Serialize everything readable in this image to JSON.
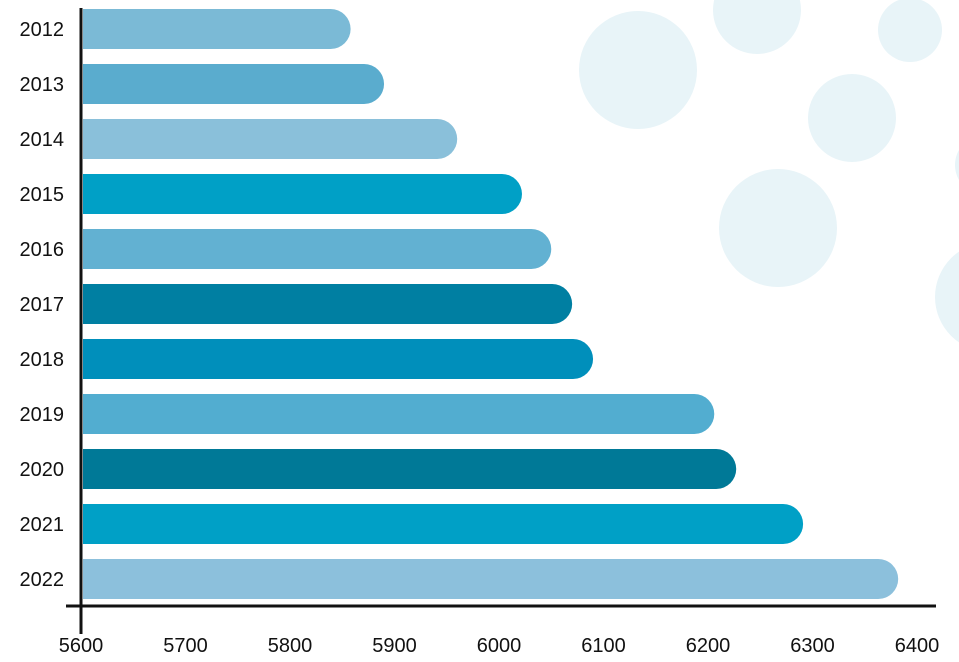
{
  "chart_data": {
    "type": "bar",
    "orientation": "horizontal",
    "title": "",
    "xlabel": "",
    "ylabel": "",
    "xlim": [
      5600,
      6400
    ],
    "xticks": [
      5600,
      5700,
      5800,
      5900,
      6000,
      6100,
      6200,
      6300,
      6400
    ],
    "categories": [
      "2012",
      "2013",
      "2014",
      "2015",
      "2016",
      "2017",
      "2018",
      "2019",
      "2020",
      "2021",
      "2022"
    ],
    "values": [
      5858,
      5890,
      5960,
      6022,
      6050,
      6070,
      6090,
      6206,
      6227,
      6291,
      6382
    ],
    "colors": [
      "#7bbad6",
      "#5aacce",
      "#8ac0da",
      "#00a0c6",
      "#62b1d2",
      "#007fa2",
      "#008fbb",
      "#52add0",
      "#007997",
      "#00a0c6",
      "#8cc0dc"
    ],
    "grid": false,
    "legend": "none"
  }
}
